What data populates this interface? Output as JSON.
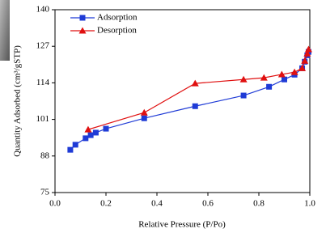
{
  "chart_data": {
    "type": "line",
    "xlabel": "Relative Pressure (P/Po)",
    "ylabel": "Quantity Adsorbed (cm³/gSTP)",
    "xlim": [
      0,
      1
    ],
    "ylim": [
      75,
      140
    ],
    "xticks": [
      {
        "value": 0,
        "label": "0.0"
      },
      0.2,
      0.4,
      0.6,
      0.8,
      {
        "value": 1,
        "label": "1.0"
      }
    ],
    "yticks": [
      75,
      88,
      101,
      114,
      127,
      140
    ],
    "legend": "upper left",
    "series": [
      {
        "name": "Adsorption",
        "color": "#1f3bd6",
        "marker": "square",
        "x": [
          0.06,
          0.08,
          0.12,
          0.14,
          0.16,
          0.2,
          0.35,
          0.55,
          0.74,
          0.84,
          0.9,
          0.94,
          0.97,
          0.98,
          0.99,
          0.995
        ],
        "values": [
          90.2,
          92,
          94.3,
          95.4,
          96.3,
          97.7,
          101.4,
          105.7,
          109.5,
          112.6,
          115.2,
          116.9,
          119.2,
          121.5,
          123.8,
          125
        ]
      },
      {
        "name": "Desorption",
        "color": "#e01010",
        "marker": "triangle",
        "x": [
          0.13,
          0.35,
          0.55,
          0.74,
          0.82,
          0.89,
          0.94,
          0.97,
          0.98,
          0.99,
          0.995
        ],
        "values": [
          97.4,
          103.4,
          113.8,
          115.2,
          115.8,
          117,
          117.8,
          119.2,
          121.8,
          124.4,
          125.9
        ]
      }
    ]
  }
}
